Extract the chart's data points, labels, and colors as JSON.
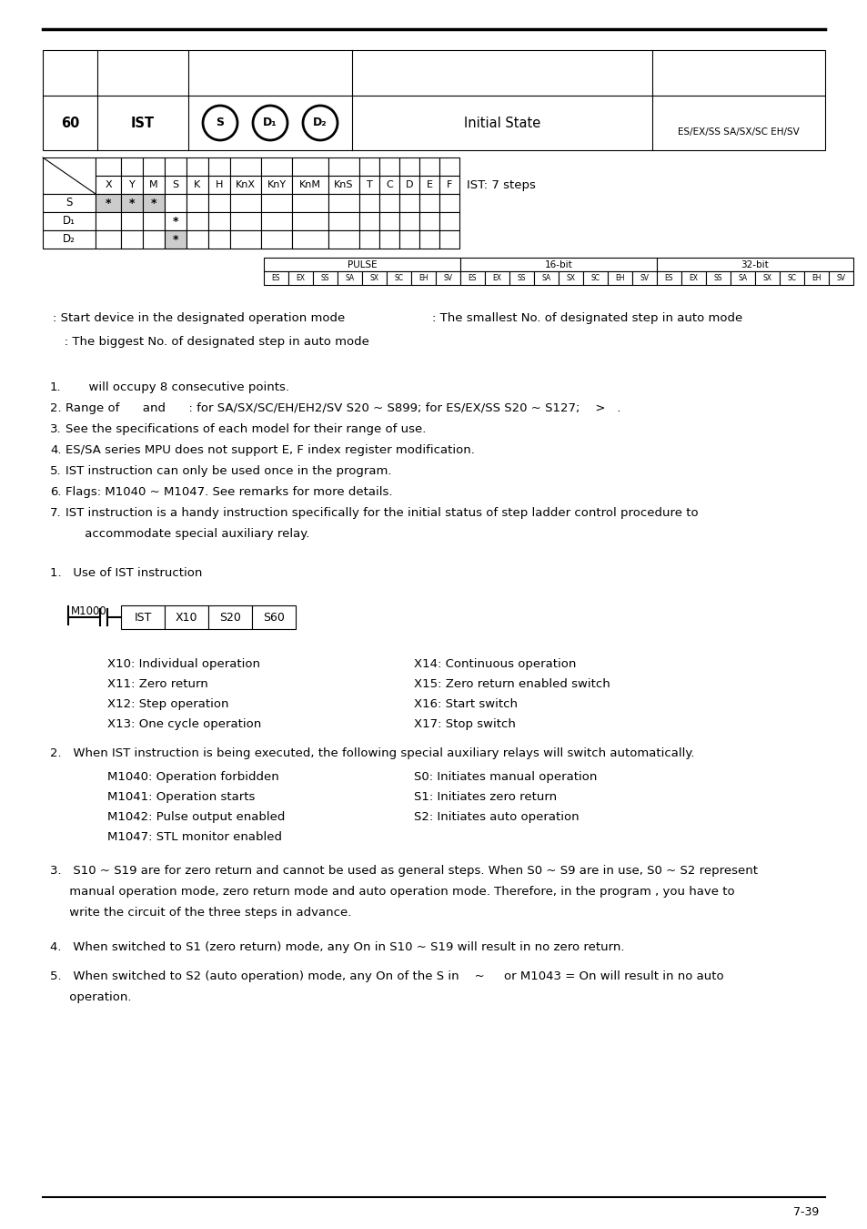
{
  "page_number": "7-39",
  "instruction": {
    "num": "60",
    "name": "IST",
    "operands_labels": [
      "S",
      "D₁",
      "D₂"
    ],
    "description": "Initial State",
    "support_top": "",
    "support_bot": "ES/EX/SS SA/SX/SC EH/SV"
  },
  "grid_headers": [
    "X",
    "Y",
    "M",
    "S",
    "K",
    "H",
    "KnX",
    "KnY",
    "KnM",
    "KnS",
    "T",
    "C",
    "D",
    "E",
    "F"
  ],
  "grid_note": "IST: 7 steps",
  "grid_rows": [
    {
      "label": "S",
      "stars": [
        0,
        1,
        2
      ],
      "gray": [
        0,
        1,
        2
      ]
    },
    {
      "label": "D₁",
      "stars": [
        3
      ],
      "gray": []
    },
    {
      "label": "D₂",
      "stars": [
        3
      ],
      "gray": [
        3
      ]
    }
  ],
  "pulse_row": [
    "ES",
    "EX",
    "SS",
    "SA",
    "SX",
    "SC",
    "EH",
    "SV",
    "ES",
    "EX",
    "SS",
    "SA",
    "SX",
    "SC",
    "EH",
    "SV",
    "ES",
    "EX",
    "SS",
    "SA",
    "SX",
    "SC",
    "EH",
    "SV"
  ],
  "pulse_headers": [
    "PULSE",
    "16-bit",
    "32-bit"
  ],
  "desc_line1_left": ": Start device in the designated operation mode",
  "desc_line1_right": ": The smallest No. of designated step in auto mode",
  "desc_line2": "   : The biggest No. of designated step in auto mode",
  "numbered_items": [
    {
      "num": "1.",
      "text": "      will occupy 8 consecutive points.",
      "extra_lines": []
    },
    {
      "num": "2.",
      "text": "Range of      and      : for SA/SX/SC/EH/EH2/SV S20 ~ S899; for ES/EX/SS S20 ~ S127;    >   .",
      "extra_lines": []
    },
    {
      "num": "3.",
      "text": "See the specifications of each model for their range of use.",
      "extra_lines": []
    },
    {
      "num": "4.",
      "text": "ES/SA series MPU does not support E, F index register modification.",
      "extra_lines": []
    },
    {
      "num": "5.",
      "text": "IST instruction can only be used once in the program.",
      "extra_lines": []
    },
    {
      "num": "6.",
      "text": "Flags: M1040 ~ M1047. See remarks for more details.",
      "extra_lines": []
    },
    {
      "num": "7.",
      "text": "IST instruction is a handy instruction specifically for the initial status of step ladder control procedure to",
      "extra_lines": [
        "     accommodate special auxiliary relay."
      ]
    }
  ],
  "example_header": "1.   Use of IST instruction",
  "ladder_contact_label": "M1000",
  "ladder_boxes": [
    "IST",
    "X10",
    "S20",
    "S60"
  ],
  "x_items_left": [
    "X10: Individual operation",
    "X11: Zero return",
    "X12: Step operation",
    "X13: One cycle operation"
  ],
  "x_items_right": [
    "X14: Continuous operation",
    "X15: Zero return enabled switch",
    "X16: Start switch",
    "X17: Stop switch"
  ],
  "item2_title": "2.   When IST instruction is being executed, the following special auxiliary relays will switch automatically.",
  "m_items_left": [
    "M1040: Operation forbidden",
    "M1041: Operation starts",
    "M1042: Pulse output enabled",
    "M1047: STL monitor enabled"
  ],
  "m_items_right": [
    "S0: Initiates manual operation",
    "S1: Initiates zero return",
    "S2: Initiates auto operation"
  ],
  "item3_lines": [
    "3.   S10 ~ S19 are for zero return and cannot be used as general steps. When S0 ~ S9 are in use, S0 ~ S2 represent",
    "     manual operation mode, zero return mode and auto operation mode. Therefore, in the program , you have to",
    "     write the circuit of the three steps in advance."
  ],
  "item4_text": "4.   When switched to S1 (zero return) mode, any On in S10 ~ S19 will result in no zero return.",
  "item5_lines": [
    "5.   When switched to S2 (auto operation) mode, any On of the S in    ~     or M1043 = On will result in no auto",
    "     operation."
  ]
}
